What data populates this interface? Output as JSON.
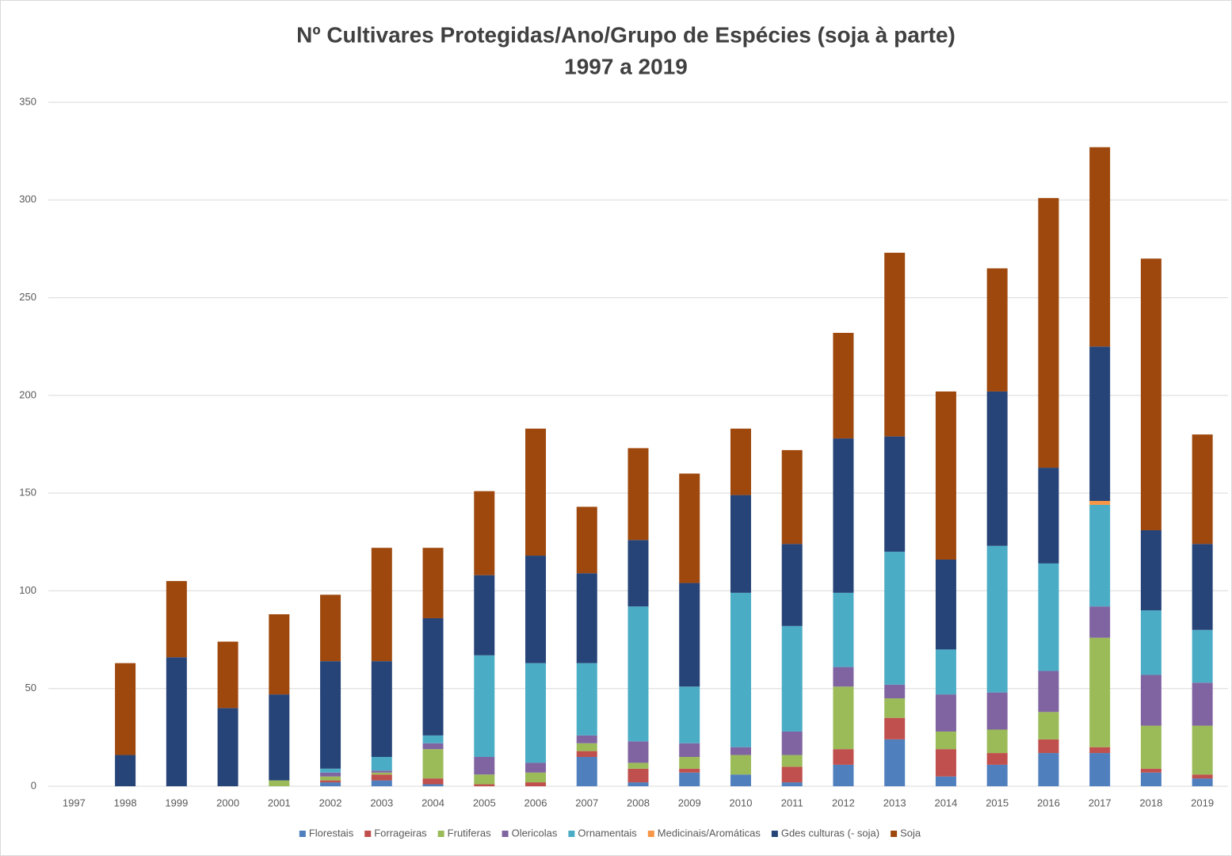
{
  "chart_data": {
    "type": "stacked_bar",
    "title": "Nº Cultivares Protegidas/Ano/Grupo de Espécies (soja à parte)",
    "subtitle": "1997 a 2019",
    "categories": [
      "1997",
      "1998",
      "1999",
      "2000",
      "2001",
      "2002",
      "2003",
      "2004",
      "2005",
      "2006",
      "2007",
      "2008",
      "2009",
      "2010",
      "2011",
      "2012",
      "2013",
      "2014",
      "2015",
      "2016",
      "2017",
      "2018",
      "2019"
    ],
    "ylim": [
      0,
      350
    ],
    "yticks": [
      0,
      50,
      100,
      150,
      200,
      250,
      300,
      350
    ],
    "grid": true,
    "legend": "bottom",
    "series": [
      {
        "name": "Florestais",
        "color": "#4f7fbd",
        "values": [
          0,
          0,
          0,
          0,
          0,
          2,
          3,
          1,
          0,
          0,
          15,
          2,
          7,
          6,
          2,
          11,
          24,
          5,
          11,
          17,
          17,
          7,
          4
        ]
      },
      {
        "name": "Forrageiras",
        "color": "#c0504d",
        "values": [
          0,
          0,
          0,
          0,
          0,
          1,
          3,
          3,
          1,
          2,
          3,
          7,
          2,
          0,
          8,
          8,
          11,
          14,
          6,
          7,
          3,
          2,
          2
        ]
      },
      {
        "name": "Frutiferas",
        "color": "#9bbb59",
        "values": [
          0,
          0,
          0,
          0,
          3,
          2,
          1,
          15,
          5,
          5,
          4,
          3,
          6,
          10,
          6,
          32,
          10,
          9,
          12,
          14,
          56,
          22,
          25
        ]
      },
      {
        "name": "Olericolas",
        "color": "#8064a2",
        "values": [
          0,
          0,
          0,
          0,
          0,
          2,
          1,
          3,
          9,
          5,
          4,
          11,
          7,
          4,
          12,
          10,
          7,
          19,
          19,
          21,
          16,
          26,
          22
        ]
      },
      {
        "name": "Ornamentais",
        "color": "#4bacc6",
        "values": [
          0,
          0,
          0,
          0,
          0,
          2,
          7,
          4,
          52,
          51,
          37,
          69,
          29,
          79,
          54,
          38,
          68,
          23,
          75,
          55,
          52,
          33,
          27
        ]
      },
      {
        "name": "Medicinais/Aromáticas",
        "color": "#f79646",
        "values": [
          0,
          0,
          0,
          0,
          0,
          0,
          0,
          0,
          0,
          0,
          0,
          0,
          0,
          0,
          0,
          0,
          0,
          0,
          0,
          0,
          2,
          0,
          0
        ]
      },
      {
        "name": "Gdes culturas (- soja)",
        "color": "#264478",
        "values": [
          0,
          16,
          66,
          40,
          44,
          55,
          49,
          60,
          41,
          55,
          46,
          34,
          53,
          50,
          42,
          79,
          59,
          46,
          79,
          49,
          79,
          41,
          44
        ]
      },
      {
        "name": "Soja",
        "color": "#9e480e",
        "values": [
          0,
          47,
          39,
          34,
          41,
          34,
          58,
          36,
          43,
          65,
          34,
          47,
          56,
          34,
          48,
          54,
          94,
          86,
          63,
          138,
          102,
          139,
          56
        ]
      }
    ]
  }
}
